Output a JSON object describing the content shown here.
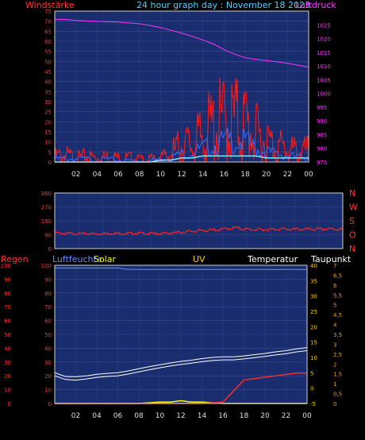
{
  "header": {
    "left_label": "Windstärke",
    "title": "24 hour graph day : November 18 2023",
    "right_label": "Luftdruck"
  },
  "colors": {
    "background": "#000000",
    "plot_bg": "#1a2d6e",
    "grid": "#3a4c96",
    "frame": "#cfcfcf",
    "wind": "#ff1a1a",
    "gust": "#3a6cff",
    "wind_avg": "#7fe7ff",
    "pressure": "#ff33ff",
    "direction": "#ff2020",
    "rain": "#ff2b2b",
    "humidity": "#6b8cff",
    "solar": "#ffff00",
    "uv": "#ffcc00",
    "temperature": "#ffffff",
    "dewpoint": "#ffffff",
    "axis_left_wind": "#ff3333",
    "axis_right_pressure": "#ff33ff",
    "axis_text": "#dddddd",
    "regen_axis": "#ff3333",
    "uv_axis": "#ff9900",
    "temp_axis": "#ffcc00"
  },
  "x_ticks": [
    "02",
    "04",
    "06",
    "08",
    "10",
    "12",
    "14",
    "16",
    "18",
    "20",
    "22",
    "00"
  ],
  "chart_data": [
    {
      "type": "line",
      "id": "wind-pressure",
      "ylabel_left": "Windstärke",
      "ylabel_right": "Luftdruck",
      "ylim_left": [
        0,
        75
      ],
      "yticks_left": [
        "75",
        "70",
        "65",
        "60",
        "55",
        "50",
        "45",
        "40",
        "35",
        "30",
        "25",
        "20",
        "15",
        "10",
        "5",
        "0"
      ],
      "ylim_right": [
        975,
        1030
      ],
      "yticks_right": [
        "1025",
        "1020",
        "1015",
        "1010",
        "1005",
        "1000",
        "995",
        "990",
        "985",
        "980",
        "975"
      ],
      "x_hours": [
        0,
        1,
        2,
        3,
        4,
        5,
        6,
        7,
        8,
        9,
        10,
        11,
        12,
        13,
        14,
        15,
        16,
        17,
        18,
        19,
        20,
        21,
        22,
        23,
        24
      ],
      "series": [
        {
          "key": "wind",
          "values": [
            4,
            5,
            3,
            4,
            3,
            4,
            3,
            3,
            2,
            2,
            3,
            6,
            12,
            12,
            18,
            24,
            27,
            28,
            26,
            18,
            14,
            11,
            9,
            7,
            8
          ]
        },
        {
          "key": "gust",
          "values": [
            2,
            2,
            2,
            2,
            1,
            2,
            1,
            1,
            1,
            1,
            2,
            3,
            5,
            6,
            8,
            10,
            12,
            13,
            12,
            8,
            6,
            5,
            4,
            3,
            3
          ]
        },
        {
          "key": "wind_avg",
          "values": [
            0,
            0,
            0,
            0,
            0,
            0,
            0,
            0,
            0,
            0,
            1,
            1,
            2,
            2,
            3,
            3,
            3,
            3,
            3,
            3,
            2,
            2,
            2,
            2,
            2
          ]
        },
        {
          "key": "pressure",
          "values": [
            1027,
            1027,
            1026.6,
            1026.4,
            1026.3,
            1026.1,
            1026,
            1025.7,
            1025.4,
            1024.8,
            1024,
            1023,
            1022,
            1020.8,
            1019.5,
            1018,
            1016,
            1014.3,
            1013,
            1012.4,
            1012,
            1011.5,
            1011,
            1010.3,
            1009.6
          ]
        }
      ]
    },
    {
      "type": "line",
      "id": "wind-direction",
      "ylim": [
        0,
        360
      ],
      "yticks": [
        "360",
        "270",
        "180",
        "90",
        "0"
      ],
      "compass_labels": [
        "N",
        "W",
        "S",
        "O",
        "N"
      ],
      "x_hours": [
        0,
        1,
        2,
        3,
        4,
        5,
        6,
        7,
        8,
        9,
        10,
        11,
        12,
        13,
        14,
        15,
        16,
        17,
        18,
        19,
        20,
        21,
        22,
        23,
        24
      ],
      "series": [
        {
          "key": "direction",
          "values": [
            105,
            100,
            100,
            98,
            100,
            100,
            100,
            102,
            100,
            100,
            105,
            112,
            118,
            122,
            128,
            138,
            128,
            125,
            128,
            130,
            128,
            128,
            128,
            130,
            128
          ]
        }
      ]
    },
    {
      "type": "line",
      "id": "weather-multi",
      "legend": [
        "Regen",
        "Luftfeuchte",
        "Solar",
        "UV",
        "Temperatur",
        "Taupunkt"
      ],
      "ylim_left_rain": [
        0,
        100
      ],
      "yticks_rain": [
        "100",
        "90",
        "80",
        "70",
        "60",
        "50",
        "40",
        "30",
        "20",
        "10",
        "0"
      ],
      "yticks_humidity": [
        "100",
        "90",
        "80",
        "70",
        "60",
        "50",
        "40",
        "30",
        "20",
        "10",
        "0"
      ],
      "ylim_uv": [
        0,
        7
      ],
      "yticks_uv": [
        "7",
        "6,5",
        "6",
        "5,5",
        "5",
        "4,5",
        "4",
        "3,5",
        "3",
        "2,5",
        "2",
        "1,5",
        "1",
        "0,5",
        "0"
      ],
      "ylim_temp": [
        -5,
        40
      ],
      "yticks_temp": [
        "40",
        "35",
        "30",
        "25",
        "20",
        "15",
        "10",
        "5",
        "0",
        "-5"
      ],
      "x_hours": [
        0,
        1,
        2,
        3,
        4,
        5,
        6,
        7,
        8,
        9,
        10,
        11,
        12,
        13,
        14,
        15,
        16,
        17,
        18,
        19,
        20,
        21,
        22,
        23,
        24
      ],
      "series": [
        {
          "key": "humidity",
          "values": [
            98,
            98,
            98,
            98,
            98,
            98,
            98,
            97,
            97,
            97,
            97,
            97,
            97,
            97,
            97,
            97,
            97,
            97,
            97,
            97,
            97,
            97,
            97,
            97,
            97
          ]
        },
        {
          "key": "temperature",
          "values": [
            5,
            3.8,
            3.7,
            4,
            4.5,
            4.8,
            5,
            5.6,
            6.3,
            7,
            7.6,
            8.2,
            8.7,
            9.1,
            9.6,
            10,
            10.2,
            10.2,
            10.5,
            10.9,
            11.3,
            11.8,
            12.2,
            12.8,
            13.2
          ]
        },
        {
          "key": "dewpoint",
          "values": [
            4,
            2.8,
            2.6,
            3,
            3.5,
            3.8,
            4,
            4.6,
            5.3,
            6,
            6.6,
            7.2,
            7.7,
            8.1,
            8.6,
            9,
            9.2,
            9.2,
            9.5,
            9.9,
            10.3,
            10.8,
            11.2,
            11.8,
            12.2
          ]
        },
        {
          "key": "rain",
          "values": [
            0,
            0,
            0,
            0,
            0,
            0,
            0,
            0,
            0,
            0,
            0,
            0,
            0,
            0,
            0,
            0.5,
            1,
            9,
            17,
            18,
            19,
            20,
            21,
            22,
            22
          ]
        },
        {
          "key": "solar",
          "values": [
            0,
            0,
            0,
            0,
            0,
            0,
            0,
            0,
            0,
            0.5,
            1,
            1,
            2,
            1,
            1,
            0.5,
            0,
            0,
            0,
            0,
            0,
            0,
            0,
            0,
            0
          ]
        }
      ]
    }
  ]
}
